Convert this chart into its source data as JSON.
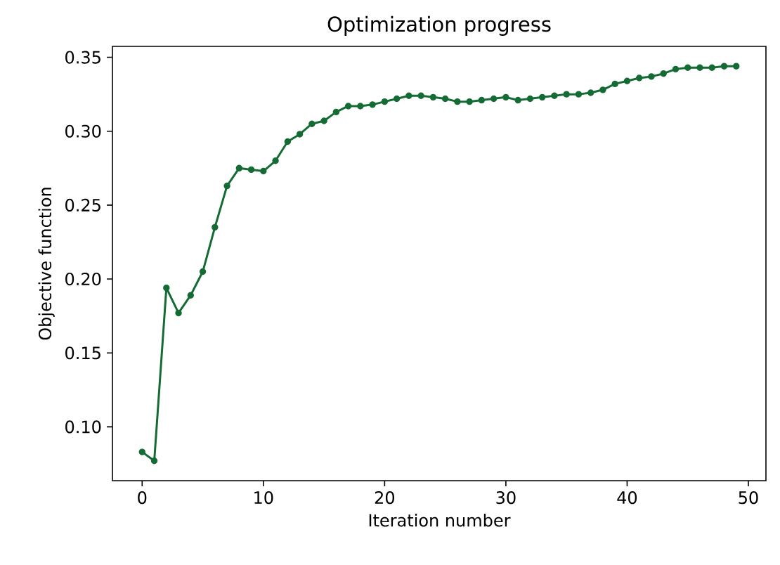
{
  "chart_data": {
    "type": "line",
    "title": "Optimization progress",
    "xlabel": "Iteration number",
    "ylabel": "Objective function",
    "x": [
      0,
      1,
      2,
      3,
      4,
      5,
      6,
      7,
      8,
      9,
      10,
      11,
      12,
      13,
      14,
      15,
      16,
      17,
      18,
      19,
      20,
      21,
      22,
      23,
      24,
      25,
      26,
      27,
      28,
      29,
      30,
      31,
      32,
      33,
      34,
      35,
      36,
      37,
      38,
      39,
      40,
      41,
      42,
      43,
      44,
      45,
      46,
      47,
      48,
      49
    ],
    "series": [
      {
        "color": "#146b34",
        "values": [
          0.083,
          0.077,
          0.194,
          0.177,
          0.189,
          0.205,
          0.235,
          0.263,
          0.275,
          0.274,
          0.273,
          0.28,
          0.293,
          0.298,
          0.305,
          0.307,
          0.313,
          0.317,
          0.317,
          0.318,
          0.32,
          0.322,
          0.324,
          0.324,
          0.323,
          0.322,
          0.32,
          0.32,
          0.321,
          0.322,
          0.323,
          0.321,
          0.322,
          0.323,
          0.324,
          0.325,
          0.325,
          0.326,
          0.328,
          0.332,
          0.334,
          0.336,
          0.337,
          0.339,
          0.342,
          0.343,
          0.343,
          0.343,
          0.344,
          0.344
        ]
      }
    ],
    "marker": "circle",
    "line_style": "solid",
    "xlim": [
      -2.45,
      51.45
    ],
    "ylim": [
      0.0636,
      0.3574
    ],
    "xticks": [
      0,
      10,
      20,
      30,
      40,
      50
    ],
    "yticks": [
      {
        "value": 0.1,
        "label": "0.10"
      },
      {
        "value": 0.15,
        "label": "0.15"
      },
      {
        "value": 0.2,
        "label": "0.20"
      },
      {
        "value": 0.25,
        "label": "0.25"
      },
      {
        "value": 0.3,
        "label": "0.30"
      },
      {
        "value": 0.35,
        "label": "0.35"
      }
    ]
  }
}
